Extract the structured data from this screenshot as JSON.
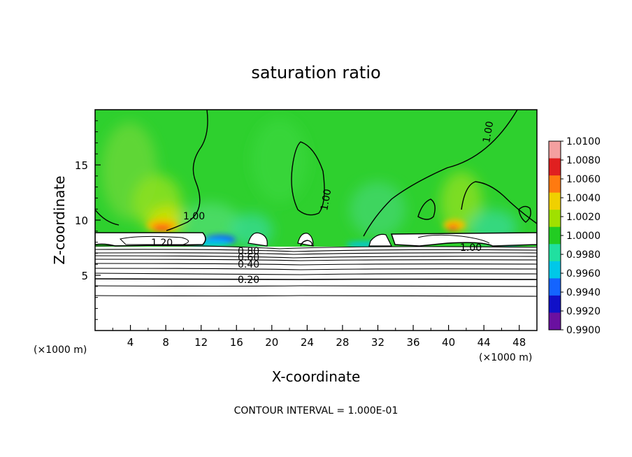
{
  "chart_data": {
    "type": "heatmap",
    "title": "saturation ratio",
    "xlabel": "X-coordinate",
    "ylabel": "Z-coordinate",
    "x_unit": "(×1000 m)",
    "xlim": [
      0,
      50
    ],
    "ylim": [
      0,
      20
    ],
    "x_ticks": [
      "4",
      "8",
      "12",
      "16",
      "20",
      "24",
      "28",
      "32",
      "36",
      "40",
      "44",
      "48"
    ],
    "y_ticks": [
      "5",
      "10",
      "15"
    ],
    "colorbar": {
      "levels": [
        "1.0100",
        "1.0080",
        "1.0060",
        "1.0040",
        "1.0020",
        "1.0000",
        "0.9980",
        "0.9960",
        "0.9940",
        "0.9920",
        "0.9900"
      ],
      "colors": [
        "#f4a0a0",
        "#e02020",
        "#ff7a10",
        "#f0d000",
        "#a0e000",
        "#22cc22",
        "#20e0a0",
        "#00c8e8",
        "#1464ff",
        "#1010c8",
        "#6a10a0"
      ]
    },
    "contour_labels": [
      "1.00",
      "1.00",
      "1.00",
      "1.00",
      "1.20",
      "1.00",
      "0.80",
      "0.60",
      "0.40",
      "0.20"
    ],
    "footer": "CONTOUR INTERVAL = 1.000E-01"
  }
}
